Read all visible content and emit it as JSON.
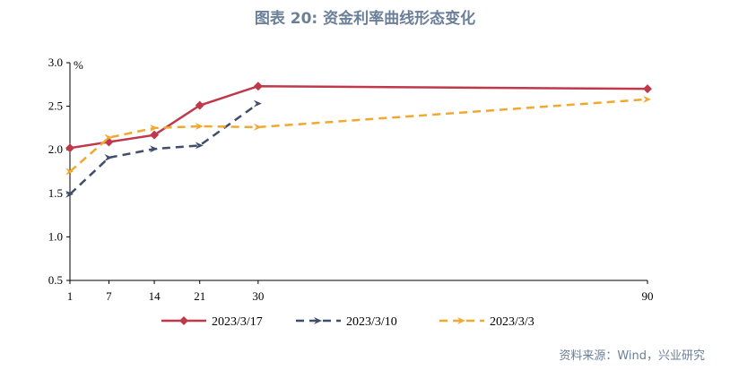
{
  "title": "图表 20: 资金利率曲线形态变化",
  "source": "资料来源：Wind，兴业研究",
  "chart_data": {
    "type": "line",
    "ylabel": "%",
    "ylim": [
      0.5,
      3.0
    ],
    "yticks": [
      "0.5",
      "1.0",
      "1.5",
      "2.0",
      "2.5",
      "3.0"
    ],
    "xlim": [
      1,
      90
    ],
    "xticks": [
      "1",
      "7",
      "14",
      "21",
      "30",
      "90"
    ],
    "grid": false,
    "legend": "bottom",
    "series": [
      {
        "name": "2023/3/17",
        "color": "#c0394b",
        "style": "solid",
        "marker": "diamond",
        "x": [
          1,
          7,
          14,
          21,
          30,
          90
        ],
        "y": [
          2.02,
          2.09,
          2.17,
          2.51,
          2.73,
          2.7
        ]
      },
      {
        "name": "2023/3/10",
        "color": "#3f4f6b",
        "style": "dashed",
        "marker": "arrow",
        "x": [
          1,
          7,
          14,
          21,
          30
        ],
        "y": [
          1.49,
          1.91,
          2.01,
          2.05,
          2.53
        ]
      },
      {
        "name": "2023/3/3",
        "color": "#f0a830",
        "style": "dashed",
        "marker": "arrow",
        "x": [
          1,
          7,
          14,
          21,
          30,
          90
        ],
        "y": [
          1.75,
          2.14,
          2.25,
          2.27,
          2.26,
          2.58
        ]
      }
    ]
  }
}
